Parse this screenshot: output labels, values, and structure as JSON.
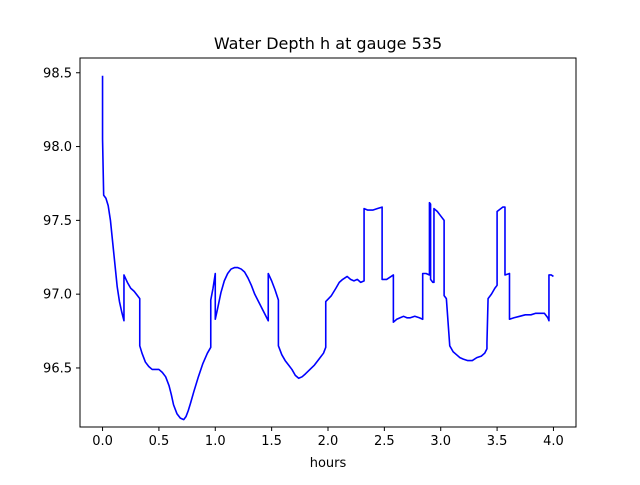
{
  "chart_data": {
    "type": "line",
    "title": "Water Depth h at gauge 535",
    "xlabel": "hours",
    "ylabel": "",
    "xlim": [
      -0.2,
      4.2
    ],
    "ylim": [
      96.1,
      98.6
    ],
    "grid": false,
    "xticks": [
      0.0,
      0.5,
      1.0,
      1.5,
      2.0,
      2.5,
      3.0,
      3.5,
      4.0
    ],
    "xtick_labels": [
      "0.0",
      "0.5",
      "1.0",
      "1.5",
      "2.0",
      "2.5",
      "3.0",
      "3.5",
      "4.0"
    ],
    "yticks": [
      96.5,
      97.0,
      97.5,
      98.0,
      98.5
    ],
    "ytick_labels": [
      "96.5",
      "97.0",
      "97.5",
      "98.0",
      "98.5"
    ],
    "series": [
      {
        "color": "#0000ff",
        "x": [
          0.0,
          0.0,
          0.01,
          0.03,
          0.05,
          0.07,
          0.09,
          0.11,
          0.13,
          0.15,
          0.17,
          0.19,
          0.19,
          0.22,
          0.25,
          0.28,
          0.31,
          0.33,
          0.33,
          0.35,
          0.38,
          0.41,
          0.44,
          0.47,
          0.5,
          0.53,
          0.56,
          0.59,
          0.61,
          0.63,
          0.66,
          0.69,
          0.72,
          0.74,
          0.76,
          0.78,
          0.81,
          0.85,
          0.89,
          0.93,
          0.96,
          0.96,
          0.98,
          1.0,
          1.0,
          1.02,
          1.05,
          1.08,
          1.11,
          1.14,
          1.17,
          1.2,
          1.23,
          1.26,
          1.29,
          1.32,
          1.35,
          1.39,
          1.43,
          1.47,
          1.47,
          1.5,
          1.53,
          1.56,
          1.56,
          1.59,
          1.62,
          1.65,
          1.68,
          1.71,
          1.74,
          1.77,
          1.8,
          1.84,
          1.88,
          1.92,
          1.96,
          1.98,
          1.98,
          2.03,
          2.07,
          2.1,
          2.13,
          2.17,
          2.2,
          2.23,
          2.26,
          2.29,
          2.32,
          2.32,
          2.35,
          2.4,
          2.44,
          2.48,
          2.48,
          2.52,
          2.56,
          2.58,
          2.58,
          2.61,
          2.64,
          2.67,
          2.7,
          2.73,
          2.77,
          2.81,
          2.84,
          2.84,
          2.87,
          2.9,
          2.9,
          2.91,
          2.91,
          2.93,
          2.94,
          2.94,
          2.97,
          3.0,
          3.03,
          3.03,
          3.05,
          3.08,
          3.11,
          3.14,
          3.17,
          3.2,
          3.24,
          3.28,
          3.32,
          3.36,
          3.39,
          3.41,
          3.41,
          3.42,
          3.42,
          3.45,
          3.48,
          3.5,
          3.5,
          3.55,
          3.57,
          3.57,
          3.61,
          3.61,
          3.65,
          3.7,
          3.75,
          3.8,
          3.84,
          3.88,
          3.92,
          3.95,
          3.96,
          3.96,
          3.98,
          4.0
        ],
        "y": [
          98.48,
          98.05,
          97.67,
          97.65,
          97.6,
          97.5,
          97.35,
          97.2,
          97.05,
          96.95,
          96.88,
          96.82,
          97.13,
          97.08,
          97.04,
          97.02,
          96.99,
          96.97,
          96.65,
          96.6,
          96.54,
          96.51,
          96.49,
          96.49,
          96.49,
          96.47,
          96.44,
          96.38,
          96.32,
          96.25,
          96.19,
          96.16,
          96.15,
          96.17,
          96.21,
          96.26,
          96.34,
          96.44,
          96.53,
          96.6,
          96.64,
          96.96,
          97.04,
          97.14,
          96.83,
          96.9,
          97.01,
          97.09,
          97.14,
          97.17,
          97.18,
          97.18,
          97.17,
          97.15,
          97.11,
          97.06,
          97.0,
          96.94,
          96.88,
          96.82,
          97.14,
          97.09,
          97.03,
          96.96,
          96.65,
          96.59,
          96.55,
          96.52,
          96.49,
          96.45,
          96.43,
          96.44,
          96.46,
          96.49,
          96.52,
          96.56,
          96.6,
          96.64,
          96.95,
          96.99,
          97.04,
          97.08,
          97.1,
          97.12,
          97.1,
          97.09,
          97.1,
          97.08,
          97.09,
          97.58,
          97.57,
          97.57,
          97.58,
          97.59,
          97.1,
          97.1,
          97.12,
          97.13,
          96.81,
          96.83,
          96.84,
          96.85,
          96.84,
          96.84,
          96.85,
          96.84,
          96.83,
          97.14,
          97.14,
          97.13,
          97.62,
          97.61,
          97.1,
          97.08,
          97.08,
          97.58,
          97.56,
          97.53,
          97.5,
          96.99,
          96.97,
          96.65,
          96.61,
          96.59,
          96.57,
          96.56,
          96.55,
          96.55,
          96.57,
          96.58,
          96.6,
          96.63,
          96.67,
          96.97,
          96.97,
          97.0,
          97.04,
          97.06,
          97.56,
          97.59,
          97.59,
          97.13,
          97.14,
          96.83,
          96.84,
          96.85,
          96.86,
          96.86,
          96.87,
          96.87,
          96.87,
          96.84,
          96.82,
          97.13,
          97.13,
          97.12
        ]
      }
    ]
  }
}
